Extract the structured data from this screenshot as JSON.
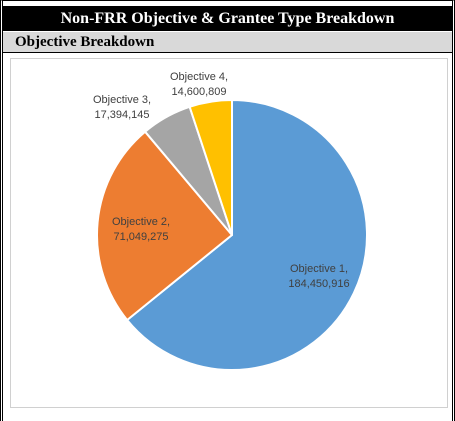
{
  "header": {
    "title": "Non-FRR Objective & Grantee Type Breakdown",
    "section": "Objective Breakdown"
  },
  "chart_data": {
    "type": "pie",
    "slices": [
      {
        "name": "Objective 1",
        "label": "Objective 1,",
        "value_text": "184,450,916",
        "value": 184450916,
        "color": "#5b9bd5"
      },
      {
        "name": "Objective 2",
        "label": "Objective 2,",
        "value_text": "71,049,275",
        "value": 71049275,
        "color": "#ed7d31"
      },
      {
        "name": "Objective 3",
        "label": "Objective 3,",
        "value_text": "17,394,145",
        "value": 17394145,
        "color": "#a5a5a5"
      },
      {
        "name": "Objective 4",
        "label": "Objective 4,",
        "value_text": "14,600,809",
        "value": 14600809,
        "color": "#ffc000"
      }
    ]
  }
}
